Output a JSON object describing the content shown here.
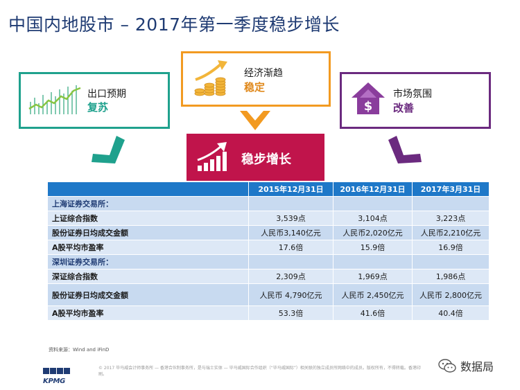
{
  "title": "中国内地股市 – 2017年第一季度稳步增长",
  "cards": {
    "export": {
      "line1": "出口预期",
      "line2": "复苏",
      "icon": "line-chart-icon",
      "color": "#1fa18d"
    },
    "economy": {
      "line1": "经济渐趋",
      "line2": "稳定",
      "icon": "coins-growth-icon",
      "color": "#f29a21"
    },
    "market": {
      "line1": "市场氛围",
      "line2": "改善",
      "icon": "house-dollar-icon",
      "color": "#6b2a7f"
    },
    "center": {
      "label": "稳步增长",
      "icon": "rising-bars-icon",
      "color": "#c0144b"
    }
  },
  "table": {
    "headers": [
      "",
      "2015年12月31日",
      "2016年12月31日",
      "2017年3月31日"
    ],
    "sections": [
      {
        "name": "上海证券交易所：",
        "rows": [
          {
            "label": "上证综合指数",
            "values": [
              "3,539点",
              "3,104点",
              "3,223点"
            ]
          },
          {
            "label": "股份证券日均成交金额",
            "values": [
              "人民币3,140亿元",
              "人民币2,020亿元",
              "人民币2,210亿元"
            ]
          },
          {
            "label": "A股平均市盈率",
            "values": [
              "17.6倍",
              "15.9倍",
              "16.9倍"
            ]
          }
        ]
      },
      {
        "name": "深圳证券交易所：",
        "rows": [
          {
            "label": "深证综合指数",
            "values": [
              "2,309点",
              "1,969点",
              "1,986点"
            ]
          },
          {
            "label": "股份证券日均成交金额",
            "values": [
              "人民币 4,790亿元",
              "人民币 2,450亿元",
              "人民币 2,800亿元"
            ]
          },
          {
            "label": "A股平均市盈率",
            "values": [
              "53.3倍",
              "41.6倍",
              "40.4倍"
            ]
          }
        ]
      }
    ]
  },
  "source": "资料来源：Wind and iFinD",
  "footer_note": "© 2017 毕马威会计师事务所 — 香港合伙制事务所，是与瑞士实体 — 毕马威国际合作组织（“毕马威国际”）相关联的独立成员所网络中的成员。版权所有，不得转载。香港印刷。",
  "brand": "KPMG",
  "wechat_account": "数据局",
  "colors": {
    "header_blue": "#1e78c8",
    "title_navy": "#1f3b73"
  }
}
